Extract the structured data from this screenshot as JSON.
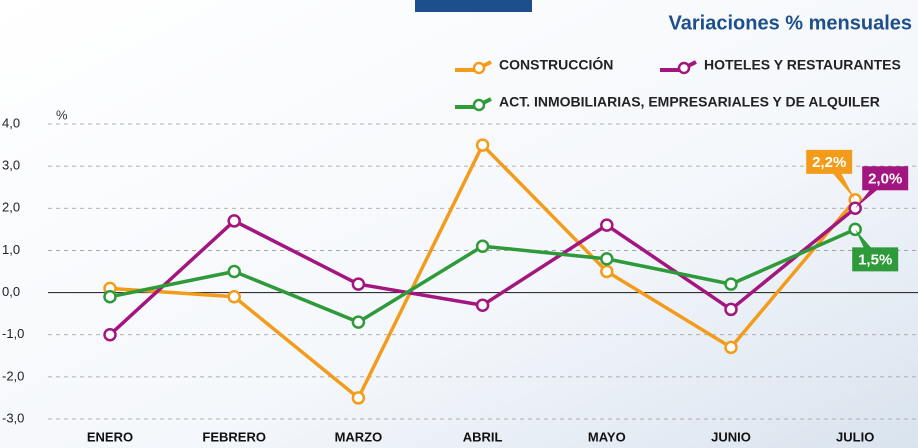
{
  "chart_data": {
    "type": "line",
    "title": "Variaciones % mensuales",
    "y_unit": "%",
    "categories": [
      "ENERO",
      "FEBRERO",
      "MARZO",
      "ABRIL",
      "MAYO",
      "JUNIO",
      "JULIO"
    ],
    "series": [
      {
        "name": "CONSTRUCCIÓN",
        "color": "#f39c1b",
        "values": [
          0.1,
          -0.1,
          -2.5,
          3.5,
          0.5,
          -1.3,
          2.2
        ],
        "value_labels": [
          null,
          null,
          null,
          null,
          null,
          null,
          "2,2%"
        ]
      },
      {
        "name": "HOTELES Y RESTAURANTES",
        "color": "#a3167f",
        "values": [
          -1.0,
          1.7,
          0.2,
          -0.3,
          1.6,
          -0.4,
          2.0
        ],
        "value_labels": [
          null,
          null,
          null,
          null,
          null,
          null,
          "2,0%"
        ]
      },
      {
        "name": "ACT. INMOBILIARIAS, EMPRESARIALES Y DE ALQUILER",
        "color": "#2e9a3a",
        "values": [
          -0.1,
          0.5,
          -0.7,
          1.1,
          0.8,
          0.2,
          1.5
        ],
        "value_labels": [
          null,
          null,
          null,
          null,
          null,
          null,
          "1,5%"
        ]
      }
    ],
    "ylim": [
      -3,
      4
    ],
    "yticks": [
      {
        "value": -3,
        "label": "-3,0"
      },
      {
        "value": -2,
        "label": "-2,0"
      },
      {
        "value": -1,
        "label": "-1,0"
      },
      {
        "value": 0,
        "label": "0,0"
      },
      {
        "value": 1,
        "label": "1,0"
      },
      {
        "value": 2,
        "label": "2,0"
      },
      {
        "value": 3,
        "label": "3,0"
      },
      {
        "value": 4,
        "label": "4,0"
      }
    ],
    "grid": true
  }
}
